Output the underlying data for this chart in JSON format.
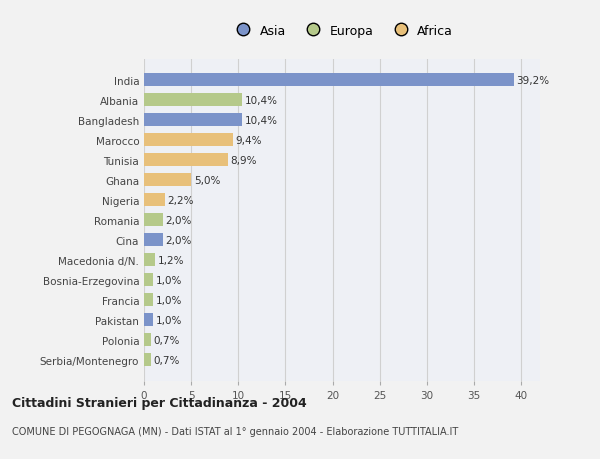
{
  "countries": [
    "India",
    "Albania",
    "Bangladesh",
    "Marocco",
    "Tunisia",
    "Ghana",
    "Nigeria",
    "Romania",
    "Cina",
    "Macedonia d/N.",
    "Bosnia-Erzegovina",
    "Francia",
    "Pakistan",
    "Polonia",
    "Serbia/Montenegro"
  ],
  "values": [
    39.2,
    10.4,
    10.4,
    9.4,
    8.9,
    5.0,
    2.2,
    2.0,
    2.0,
    1.2,
    1.0,
    1.0,
    1.0,
    0.7,
    0.7
  ],
  "labels": [
    "39,2%",
    "10,4%",
    "10,4%",
    "9,4%",
    "8,9%",
    "5,0%",
    "2,2%",
    "2,0%",
    "2,0%",
    "1,2%",
    "1,0%",
    "1,0%",
    "1,0%",
    "0,7%",
    "0,7%"
  ],
  "continents": [
    "Asia",
    "Europa",
    "Asia",
    "Africa",
    "Africa",
    "Africa",
    "Africa",
    "Europa",
    "Asia",
    "Europa",
    "Europa",
    "Europa",
    "Asia",
    "Europa",
    "Europa"
  ],
  "colors": {
    "Asia": "#7b93c9",
    "Europa": "#b5c98a",
    "Africa": "#e8c07a"
  },
  "legend_labels": [
    "Asia",
    "Europa",
    "Africa"
  ],
  "legend_colors": [
    "#7b93c9",
    "#b5c98a",
    "#e8c07a"
  ],
  "title": "Cittadini Stranieri per Cittadinanza - 2004",
  "subtitle": "COMUNE DI PEGOGNAGA (MN) - Dati ISTAT al 1° gennaio 2004 - Elaborazione TUTTITALIA.IT",
  "xlim": [
    0,
    42
  ],
  "xticks": [
    0,
    5,
    10,
    15,
    20,
    25,
    30,
    35,
    40
  ],
  "background_color": "#f2f2f2",
  "plot_bg_color": "#eef0f5",
  "grid_color": "#d0d0d0",
  "bar_height": 0.65
}
